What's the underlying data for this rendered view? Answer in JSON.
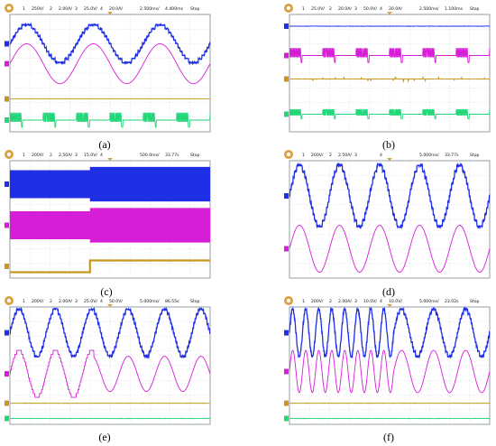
{
  "figure": {
    "captions": [
      "(a)",
      "(b)",
      "(c)",
      "(d)",
      "(e)",
      "(f)"
    ]
  },
  "colors": {
    "ch1": "#1f2fe6",
    "ch2": "#d61ed6",
    "ch3": "#c8981e",
    "ch4": "#24d67a",
    "grid": "#b9c0c8",
    "screen": "#ffffff"
  },
  "chart_data": [
    {
      "type": "line",
      "panel": "a",
      "header": [
        "1",
        "250V/",
        "2",
        "2.00A/",
        "3",
        "25.0V/",
        "4",
        "20.0A/",
        "2.500ms/",
        "4.400ms",
        "Stop"
      ],
      "series": [
        {
          "channel": "1",
          "shape": "stepped-sine",
          "cycles": 3,
          "amplitude": 0.55
        },
        {
          "channel": "2",
          "shape": "sine",
          "cycles": 3,
          "amplitude": 0.7
        },
        {
          "channel": "3",
          "shape": "flat",
          "level": 0.0
        },
        {
          "channel": "4",
          "shape": "pulse-bursts",
          "bursts_per_cycle": 2
        }
      ]
    },
    {
      "type": "line",
      "panel": "b",
      "header": [
        "1",
        "25.0V/",
        "2",
        "20.0A/",
        "3",
        "50.0V/",
        "4",
        "20.0A/",
        "2.500ms/",
        "1.100ms",
        "Stop"
      ],
      "series": [
        {
          "channel": "1",
          "shape": "flat-noisy",
          "level": 0.0
        },
        {
          "channel": "2",
          "shape": "pulse-bursts",
          "bursts_per_cycle": 2
        },
        {
          "channel": "3",
          "shape": "spiky-flat",
          "level": 0.0
        },
        {
          "channel": "4",
          "shape": "pulse-bursts-small",
          "bursts_per_cycle": 2
        }
      ]
    },
    {
      "type": "line",
      "panel": "c",
      "header": [
        "1",
        "200V/",
        "2",
        "2.50A/",
        "3",
        "15.0V/",
        "4",
        "",
        "500.0ms/",
        "33.77s",
        "Stop"
      ],
      "series": [
        {
          "channel": "1",
          "shape": "dense-envelope",
          "step_at": 0.4
        },
        {
          "channel": "2",
          "shape": "dense-envelope",
          "step_at": 0.4
        },
        {
          "channel": "3",
          "shape": "step",
          "step_at": 0.4
        }
      ]
    },
    {
      "type": "line",
      "panel": "d",
      "header": [
        "1",
        "200V/",
        "2",
        "2.50A/",
        "3",
        "",
        "4",
        "",
        "5.000ms/",
        "33.77s",
        "Stop"
      ],
      "series": [
        {
          "channel": "1",
          "shape": "stepped-sine",
          "cycles": 5,
          "amplitude": 0.7
        },
        {
          "channel": "2",
          "shape": "sine",
          "cycles": 5,
          "amplitude": 0.55
        }
      ]
    },
    {
      "type": "line",
      "panel": "e",
      "header": [
        "1",
        "200V/",
        "2",
        "2.00A/",
        "3",
        "25.0V/",
        "4",
        "50.0V/",
        "5.000ms/",
        "86.55s",
        "Stop"
      ],
      "series": [
        {
          "channel": "1",
          "shape": "stepped-sine",
          "cycles": 5.5,
          "amplitude": 0.75
        },
        {
          "channel": "2",
          "shape": "sine-amplitude-change",
          "cycles": 5.5,
          "amplitude_before": 0.75,
          "amplitude_after": 0.55,
          "change_at": 0.42
        },
        {
          "channel": "3",
          "shape": "flat-noisy",
          "level": 0.0
        },
        {
          "channel": "4",
          "shape": "flat-noisy",
          "level": 0.0
        }
      ]
    },
    {
      "type": "line",
      "panel": "f",
      "header": [
        "1",
        "200V/",
        "2",
        "2.00A/",
        "3",
        "10.0V/",
        "4",
        "10.0V/",
        "5.000ms/",
        "23.02s",
        "Stop"
      ],
      "series": [
        {
          "channel": "1",
          "shape": "stepped-sine-frequency-change",
          "cycles_before": 8,
          "cycles_after": 3,
          "change_at": 0.52
        },
        {
          "channel": "2",
          "shape": "sine-frequency-change",
          "cycles_before": 8,
          "cycles_after": 3,
          "change_at": 0.52
        },
        {
          "channel": "3",
          "shape": "flat-noisy",
          "level": 0.0
        },
        {
          "channel": "4",
          "shape": "flat-noisy",
          "level": 0.0
        }
      ]
    }
  ]
}
